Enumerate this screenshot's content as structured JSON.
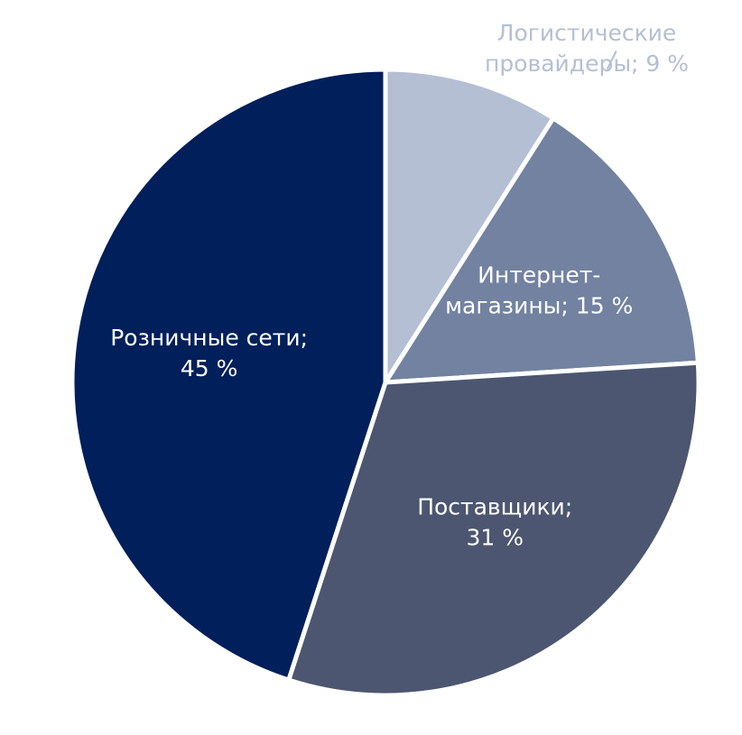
{
  "chart_data": {
    "type": "pie",
    "categories": [
      "Логистические провайдеры",
      "Интернет-магазины",
      "Поставщики",
      "Розничные сети"
    ],
    "values": [
      9,
      15,
      31,
      45
    ],
    "value_labels": [
      [
        "Логистические",
        "провайдеры; 9 %"
      ],
      [
        "Интернет-",
        "магазины; 15 %"
      ],
      [
        "Поставщики;",
        "31 %"
      ],
      [
        "Розничные сети;",
        "45 %"
      ]
    ],
    "colors": [
      "#b4bfd4",
      "#7282a0",
      "#4c5670",
      "#001f5b"
    ]
  }
}
